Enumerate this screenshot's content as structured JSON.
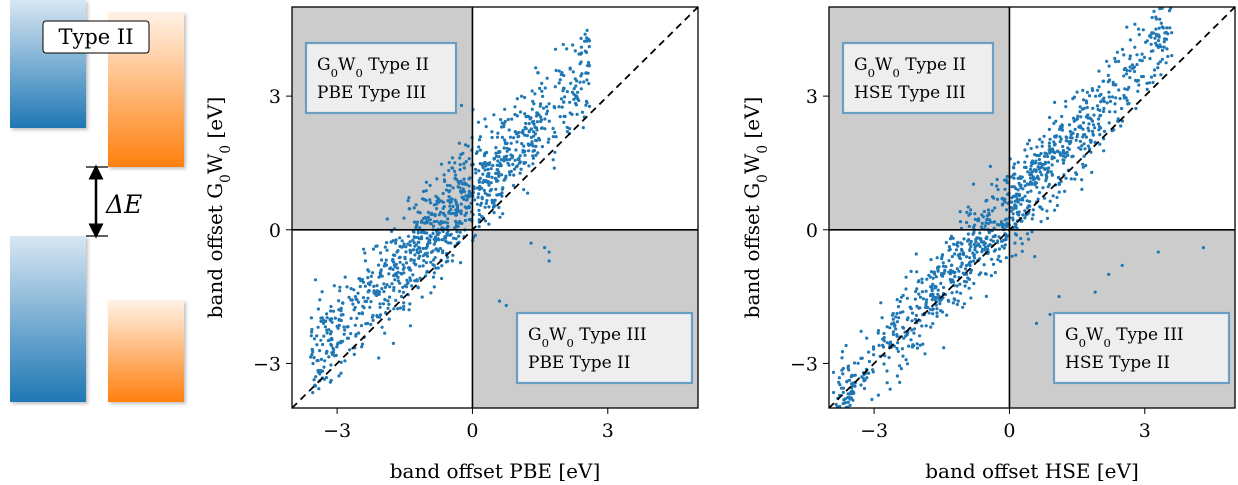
{
  "schematic": {
    "label": "Type II",
    "delta_label": "ΔE",
    "colors": {
      "blue": "#1f77b4",
      "orange": "#ff7f0e"
    }
  },
  "colors": {
    "points": "#1f77b4",
    "shade": "#cccccc",
    "box_border": "#6a9ec2",
    "box_fill": "#eeeeee"
  },
  "chart_data": [
    {
      "type": "scatter",
      "xlabel": "band offset PBE [eV]",
      "ylabel_main": "band offset G",
      "ylabel_sub1": "0",
      "ylabel_mid": "W",
      "ylabel_sub2": "0",
      "ylabel_tail": " [eV]",
      "xlim": [
        -4,
        5
      ],
      "ylim": [
        -4,
        5
      ],
      "xticks": [
        -3,
        0,
        3
      ],
      "yticks": [
        -3,
        0,
        3
      ],
      "xtick_labels": [
        "−3",
        "0",
        "3"
      ],
      "ytick_labels": [
        "−3",
        "0",
        "3"
      ],
      "diagonal": "dashed y = x",
      "shaded_quadrants": [
        "top-left",
        "bottom-right"
      ],
      "box_top_left": {
        "line1_main": "G",
        "line1_sub1": "0",
        "line1_mid": "W",
        "line1_sub2": "0",
        "line1_tail": " Type II",
        "line2": "PBE Type III"
      },
      "box_bottom_right": {
        "line1_main": "G",
        "line1_sub1": "0",
        "line1_mid": "W",
        "line1_sub2": "0",
        "line1_tail": " Type III",
        "line2": "PBE Type II"
      },
      "points": {
        "count": 1100,
        "slope": 1.05,
        "intercept": 0.85,
        "spread": 0.55,
        "x_range": [
          -3.6,
          2.6
        ]
      },
      "outliers": [
        [
          1.3,
          -0.3
        ],
        [
          1.6,
          -0.4
        ],
        [
          1.7,
          -0.5
        ],
        [
          1.7,
          -0.7
        ],
        [
          0.6,
          -1.6
        ],
        [
          0.75,
          -1.7
        ],
        [
          1.2,
          -2.1
        ],
        [
          1.1,
          -2.2
        ],
        [
          -3.3,
          -2.1
        ],
        [
          -3.1,
          -2.8
        ]
      ]
    },
    {
      "type": "scatter",
      "xlabel": "band offset HSE [eV]",
      "ylabel_main": "band offset G",
      "ylabel_sub1": "0",
      "ylabel_mid": "W",
      "ylabel_sub2": "0",
      "ylabel_tail": " [eV]",
      "xlim": [
        -4,
        5
      ],
      "ylim": [
        -4,
        5
      ],
      "xticks": [
        -3,
        0,
        3
      ],
      "yticks": [
        -3,
        0,
        3
      ],
      "xtick_labels": [
        "−3",
        "0",
        "3"
      ],
      "ytick_labels": [
        "−3",
        "0",
        "3"
      ],
      "diagonal": "dashed y = x",
      "shaded_quadrants": [
        "top-left",
        "bottom-right"
      ],
      "box_top_left": {
        "line1_main": "G",
        "line1_sub1": "0",
        "line1_mid": "W",
        "line1_sub2": "0",
        "line1_tail": " Type II",
        "line2": "HSE Type III"
      },
      "box_bottom_right": {
        "line1_main": "G",
        "line1_sub1": "0",
        "line1_mid": "W",
        "line1_sub2": "0",
        "line1_tail": " Type III",
        "line2": "HSE Type II"
      },
      "points": {
        "count": 1100,
        "slope": 1.12,
        "intercept": 0.45,
        "spread": 0.5,
        "x_range": [
          -3.9,
          3.6
        ]
      },
      "outliers": [
        [
          4.3,
          -0.4
        ],
        [
          3.3,
          -0.5
        ],
        [
          2.5,
          -0.8
        ],
        [
          1.9,
          -1.4
        ],
        [
          1.1,
          -1.5
        ],
        [
          0.9,
          -1.9
        ],
        [
          0.6,
          -2.1
        ],
        [
          -3.9,
          -3.2
        ],
        [
          -3.6,
          -3.4
        ],
        [
          2.2,
          -1.0
        ]
      ]
    }
  ]
}
